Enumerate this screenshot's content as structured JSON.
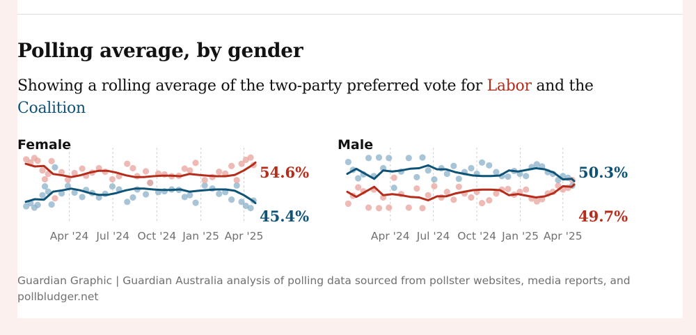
{
  "header": {
    "title": "Polling average, by gender",
    "subtitle_prefix": "Showing a rolling average of the two-party preferred vote for ",
    "subtitle_labor": "Labor",
    "subtitle_middle": " and the ",
    "subtitle_coalition": "Coalition"
  },
  "footer": {
    "source": "Guardian Graphic | Guardian Australia analysis of polling data sourced from pollster websites, media reports, and pollbludger.net"
  },
  "colors": {
    "labor": "#b52c1b",
    "coalition": "#0e5376",
    "labor_dot": "#e9a6a0",
    "coalition_dot": "#8fb4cc"
  },
  "chart_data": [
    {
      "type": "line",
      "title": "Female",
      "x_ticks": [
        "Apr '24",
        "Jul '24",
        "Oct '24",
        "Jan '25",
        "Apr '25"
      ],
      "x_range": [
        "2024-01-01",
        "2025-04-25"
      ],
      "ylim": [
        43,
        57
      ],
      "grid": "vertical dashed at ticks",
      "end_labels": [
        {
          "series": "Labor",
          "text": "54.6%"
        },
        {
          "series": "Coalition",
          "text": "45.4%"
        }
      ],
      "series": [
        {
          "name": "Labor",
          "x": [
            "2024-01-01",
            "2024-01-20",
            "2024-02-08",
            "2024-02-27",
            "2024-03-17",
            "2024-04-05",
            "2024-04-24",
            "2024-05-13",
            "2024-06-01",
            "2024-06-20",
            "2024-07-09",
            "2024-07-28",
            "2024-08-16",
            "2024-09-04",
            "2024-09-23",
            "2024-10-12",
            "2024-10-31",
            "2024-11-19",
            "2024-12-08",
            "2024-12-27",
            "2025-01-15",
            "2025-02-03",
            "2025-02-22",
            "2025-03-13",
            "2025-04-01",
            "2025-04-20",
            "2025-04-25"
          ],
          "values": [
            54.3,
            53.7,
            53.8,
            52.0,
            51.7,
            51.3,
            51.7,
            52.3,
            52.7,
            52.7,
            52.3,
            51.7,
            51.3,
            51.3,
            51.5,
            51.6,
            51.6,
            51.5,
            52.0,
            51.8,
            51.6,
            51.5,
            51.5,
            51.8,
            52.8,
            54.1,
            54.6
          ]
        },
        {
          "name": "Coalition",
          "x": [
            "2024-01-01",
            "2024-01-20",
            "2024-02-08",
            "2024-02-27",
            "2024-03-17",
            "2024-04-05",
            "2024-04-24",
            "2024-05-13",
            "2024-06-01",
            "2024-06-20",
            "2024-07-09",
            "2024-07-28",
            "2024-08-16",
            "2024-09-04",
            "2024-09-23",
            "2024-10-12",
            "2024-10-31",
            "2024-11-19",
            "2024-12-08",
            "2024-12-27",
            "2025-01-15",
            "2025-02-03",
            "2025-02-22",
            "2025-03-13",
            "2025-04-01",
            "2025-04-20",
            "2025-04-25"
          ],
          "values": [
            45.7,
            46.3,
            46.2,
            48.0,
            48.3,
            48.7,
            48.3,
            47.7,
            47.3,
            47.3,
            47.7,
            48.3,
            48.7,
            48.7,
            48.5,
            48.4,
            48.4,
            48.5,
            48.0,
            48.2,
            48.4,
            48.5,
            48.5,
            48.2,
            47.2,
            45.9,
            45.4
          ]
        }
      ],
      "polls": [
        {
          "x": "2024-01-02",
          "labor": 55.3
        },
        {
          "x": "2024-01-11",
          "labor": 54.6
        },
        {
          "x": "2024-01-19",
          "labor": 55.6
        },
        {
          "x": "2024-01-26",
          "labor": 55.0
        },
        {
          "x": "2024-02-05",
          "labor": 52.8
        },
        {
          "x": "2024-02-10",
          "labor": 50.8
        },
        {
          "x": "2024-02-17",
          "labor": 52.0
        },
        {
          "x": "2024-02-24",
          "labor": 54.9
        },
        {
          "x": "2024-03-02",
          "labor": 46.5
        },
        {
          "x": "2024-03-16",
          "labor": 52.4
        },
        {
          "x": "2024-03-29",
          "labor": 50.7
        },
        {
          "x": "2024-04-12",
          "labor": 52.2
        },
        {
          "x": "2024-04-28",
          "labor": 53.2
        },
        {
          "x": "2024-05-06",
          "labor": 51.6
        },
        {
          "x": "2024-05-19",
          "labor": 52.3
        },
        {
          "x": "2024-06-02",
          "labor": 53.3
        },
        {
          "x": "2024-06-15",
          "labor": 52.5
        },
        {
          "x": "2024-06-30",
          "labor": 50.8
        },
        {
          "x": "2024-07-14",
          "labor": 51.5
        },
        {
          "x": "2024-07-31",
          "labor": 54.3
        },
        {
          "x": "2024-08-12",
          "labor": 53.3
        },
        {
          "x": "2024-08-21",
          "labor": 51.5
        },
        {
          "x": "2024-09-08",
          "labor": 52.6
        },
        {
          "x": "2024-09-17",
          "labor": 50.0
        },
        {
          "x": "2024-10-04",
          "labor": 52.1
        },
        {
          "x": "2024-10-17",
          "labor": 51.9
        },
        {
          "x": "2024-11-01",
          "labor": 51.5
        },
        {
          "x": "2024-11-16",
          "labor": 51.6
        },
        {
          "x": "2024-11-28",
          "labor": 53.2
        },
        {
          "x": "2024-12-09",
          "labor": 52.8
        },
        {
          "x": "2024-12-21",
          "labor": 54.5
        },
        {
          "x": "2025-01-09",
          "labor": 50.6
        },
        {
          "x": "2025-01-25",
          "labor": 51.3
        },
        {
          "x": "2025-02-08",
          "labor": 52.5
        },
        {
          "x": "2025-02-21",
          "labor": 52.1
        },
        {
          "x": "2025-03-06",
          "labor": 53.8
        },
        {
          "x": "2025-03-17",
          "labor": 50.6
        },
        {
          "x": "2025-03-27",
          "labor": 54.3
        },
        {
          "x": "2025-04-05",
          "labor": 55.2
        },
        {
          "x": "2025-04-15",
          "labor": 55.7
        },
        {
          "x": "2025-04-21",
          "labor": 54.0
        }
      ]
    },
    {
      "type": "line",
      "title": "Male",
      "x_ticks": [
        "Apr '24",
        "Jul '24",
        "Oct '24",
        "Jan '25",
        "Apr '25"
      ],
      "x_range": [
        "2024-01-01",
        "2025-04-25"
      ],
      "ylim": [
        44.5,
        55.5
      ],
      "grid": "vertical dashed at ticks",
      "end_labels": [
        {
          "series": "Coalition",
          "text": "50.3%"
        },
        {
          "series": "Labor",
          "text": "49.7%"
        }
      ],
      "series": [
        {
          "name": "Coalition",
          "x": [
            "2024-01-01",
            "2024-01-20",
            "2024-02-08",
            "2024-02-27",
            "2024-03-17",
            "2024-04-05",
            "2024-04-24",
            "2024-05-13",
            "2024-06-01",
            "2024-06-20",
            "2024-07-09",
            "2024-07-28",
            "2024-08-16",
            "2024-09-04",
            "2024-09-23",
            "2024-10-12",
            "2024-10-31",
            "2024-11-19",
            "2024-12-08",
            "2024-12-27",
            "2025-01-15",
            "2025-02-03",
            "2025-02-22",
            "2025-03-13",
            "2025-04-01",
            "2025-04-20",
            "2025-04-25"
          ],
          "values": [
            51.6,
            52.5,
            51.6,
            50.7,
            52.2,
            52.0,
            52.2,
            52.5,
            52.6,
            53.1,
            52.4,
            52.4,
            51.9,
            51.6,
            51.3,
            51.2,
            51.2,
            51.3,
            52.2,
            52.0,
            52.3,
            52.6,
            52.4,
            51.8,
            50.6,
            50.7,
            50.3
          ]
        },
        {
          "name": "Labor",
          "x": [
            "2024-01-01",
            "2024-01-20",
            "2024-02-08",
            "2024-02-27",
            "2024-03-17",
            "2024-04-05",
            "2024-04-24",
            "2024-05-13",
            "2024-06-01",
            "2024-06-20",
            "2024-07-09",
            "2024-07-28",
            "2024-08-16",
            "2024-09-04",
            "2024-09-23",
            "2024-10-12",
            "2024-10-31",
            "2024-11-19",
            "2024-12-08",
            "2024-12-27",
            "2025-01-15",
            "2025-02-03",
            "2025-02-22",
            "2025-03-13",
            "2025-04-01",
            "2025-04-20",
            "2025-04-25"
          ],
          "values": [
            48.4,
            47.5,
            48.4,
            49.3,
            47.8,
            48.0,
            47.8,
            47.5,
            47.4,
            46.9,
            47.6,
            47.6,
            48.1,
            48.4,
            48.7,
            48.8,
            48.8,
            48.7,
            47.8,
            48.0,
            47.7,
            47.4,
            47.6,
            48.2,
            49.4,
            49.3,
            49.7
          ]
        }
      ],
      "polls": [
        {
          "x": "2024-01-03",
          "coalition": 53.7
        },
        {
          "x": "2024-01-13",
          "coalition": 52.3
        },
        {
          "x": "2024-01-24",
          "coalition": 50.8
        },
        {
          "x": "2024-02-04",
          "coalition": 51.5
        },
        {
          "x": "2024-02-15",
          "coalition": 54.4
        },
        {
          "x": "2024-02-26",
          "coalition": 51.2
        },
        {
          "x": "2024-03-08",
          "coalition": 54.5
        },
        {
          "x": "2024-03-17",
          "coalition": 52.6
        },
        {
          "x": "2024-03-29",
          "coalition": 54.4
        },
        {
          "x": "2024-04-09",
          "coalition": 49.1
        },
        {
          "x": "2024-04-24",
          "coalition": 52.0
        },
        {
          "x": "2024-05-10",
          "coalition": 54.4
        },
        {
          "x": "2024-05-27",
          "coalition": 51.0
        },
        {
          "x": "2024-06-08",
          "coalition": 54.5
        },
        {
          "x": "2024-06-20",
          "coalition": 52.2
        },
        {
          "x": "2024-07-03",
          "coalition": 50.6
        },
        {
          "x": "2024-07-18",
          "coalition": 52.6
        },
        {
          "x": "2024-07-30",
          "coalition": 51.6
        },
        {
          "x": "2024-08-13",
          "coalition": 53.0
        },
        {
          "x": "2024-08-24",
          "coalition": 50.7
        },
        {
          "x": "2024-09-05",
          "coalition": 51.9
        },
        {
          "x": "2024-09-19",
          "coalition": 52.6
        },
        {
          "x": "2024-10-01",
          "coalition": 51.6
        },
        {
          "x": "2024-10-12",
          "coalition": 53.6
        },
        {
          "x": "2024-10-27",
          "coalition": 53.1
        },
        {
          "x": "2024-11-11",
          "coalition": 51.9
        },
        {
          "x": "2024-11-23",
          "coalition": 51.2
        },
        {
          "x": "2024-12-06",
          "coalition": 51.1
        },
        {
          "x": "2024-12-19",
          "coalition": 52.1
        },
        {
          "x": "2024-12-31",
          "coalition": 51.6
        },
        {
          "x": "2025-01-13",
          "coalition": 51.2
        },
        {
          "x": "2025-01-25",
          "coalition": 52.8
        },
        {
          "x": "2025-02-05",
          "coalition": 53.3
        },
        {
          "x": "2025-02-16",
          "coalition": 52.9
        },
        {
          "x": "2025-02-28",
          "coalition": 51.9
        },
        {
          "x": "2025-03-11",
          "coalition": 51.6
        },
        {
          "x": "2025-03-22",
          "coalition": 50.5
        },
        {
          "x": "2025-04-01",
          "coalition": 51.2
        },
        {
          "x": "2025-04-12",
          "coalition": 50.9
        },
        {
          "x": "2025-04-21",
          "coalition": 49.5
        }
      ]
    }
  ]
}
